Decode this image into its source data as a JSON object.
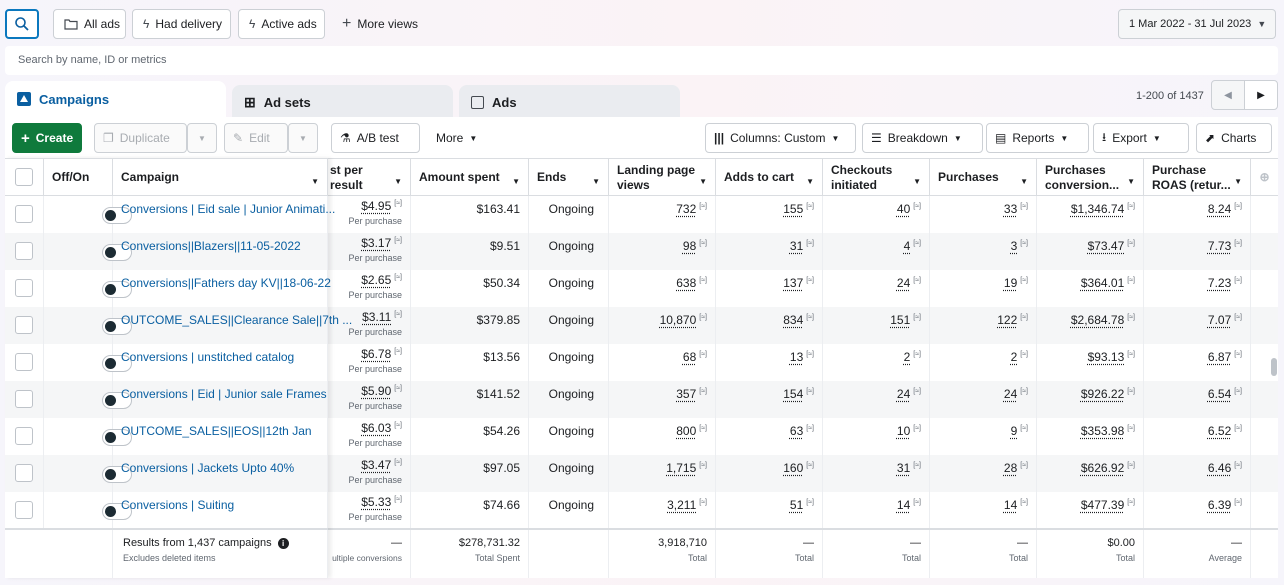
{
  "topbar": {
    "views": [
      "All ads",
      "Had delivery",
      "Active ads"
    ],
    "more_views": "More views",
    "date_range": "1 Mar 2022 - 31 Jul 2023"
  },
  "search": {
    "placeholder": "Search by name, ID or metrics"
  },
  "tabs": [
    "Campaigns",
    "Ad sets",
    "Ads"
  ],
  "pagination": {
    "text": "1-200 of 1437"
  },
  "toolbar": {
    "create": "Create",
    "duplicate": "Duplicate",
    "edit": "Edit",
    "ab_test": "A/B test",
    "more": "More",
    "columns": "Columns: Custom",
    "breakdown": "Breakdown",
    "reports": "Reports",
    "export": "Export",
    "charts": "Charts"
  },
  "headers": {
    "offon": "Off/On",
    "campaign": "Campaign",
    "cost": "st per result",
    "amount": "Amount spent",
    "ends": "Ends",
    "landing": "Landing page views",
    "adds": "Adds to cart",
    "checkouts": "Checkouts initiated",
    "purchases": "Purchases",
    "pconv": "Purchases conversion...",
    "roas": "Purchase ROAS (retur..."
  },
  "per_purchase": "Per purchase",
  "rows": [
    {
      "name": "Conversions | Eid sale | Junior Animati...",
      "cost": "$4.95",
      "amount": "$163.41",
      "ends": "Ongoing",
      "landing": "732",
      "adds": "155",
      "checkouts": "40",
      "purchases": "33",
      "pconv": "$1,346.74",
      "roas": "8.24"
    },
    {
      "name": "Conversions||Blazers||11-05-2022",
      "cost": "$3.17",
      "amount": "$9.51",
      "ends": "Ongoing",
      "landing": "98",
      "adds": "31",
      "checkouts": "4",
      "purchases": "3",
      "pconv": "$73.47",
      "roas": "7.73"
    },
    {
      "name": "Conversions||Fathers day KV||18-06-22",
      "cost": "$2.65",
      "amount": "$50.34",
      "ends": "Ongoing",
      "landing": "638",
      "adds": "137",
      "checkouts": "24",
      "purchases": "19",
      "pconv": "$364.01",
      "roas": "7.23"
    },
    {
      "name": "OUTCOME_SALES||Clearance Sale||7th ...",
      "cost": "$3.11",
      "amount": "$379.85",
      "ends": "Ongoing",
      "landing": "10,870",
      "adds": "834",
      "checkouts": "151",
      "purchases": "122",
      "pconv": "$2,684.78",
      "roas": "7.07"
    },
    {
      "name": "Conversions | unstitched catalog",
      "cost": "$6.78",
      "amount": "$13.56",
      "ends": "Ongoing",
      "landing": "68",
      "adds": "13",
      "checkouts": "2",
      "purchases": "2",
      "pconv": "$93.13",
      "roas": "6.87"
    },
    {
      "name": "Conversions | Eid | Junior sale Frames",
      "cost": "$5.90",
      "amount": "$141.52",
      "ends": "Ongoing",
      "landing": "357",
      "adds": "154",
      "checkouts": "24",
      "purchases": "24",
      "pconv": "$926.22",
      "roas": "6.54"
    },
    {
      "name": "OUTCOME_SALES||EOS||12th Jan",
      "cost": "$6.03",
      "amount": "$54.26",
      "ends": "Ongoing",
      "landing": "800",
      "adds": "63",
      "checkouts": "10",
      "purchases": "9",
      "pconv": "$353.98",
      "roas": "6.52"
    },
    {
      "name": "Conversions | Jackets Upto 40%",
      "cost": "$3.47",
      "amount": "$97.05",
      "ends": "Ongoing",
      "landing": "1,715",
      "adds": "160",
      "checkouts": "31",
      "purchases": "28",
      "pconv": "$626.92",
      "roas": "6.46"
    },
    {
      "name": "Conversions | Suiting",
      "cost": "$5.33",
      "amount": "$74.66",
      "ends": "Ongoing",
      "landing": "3,211",
      "adds": "51",
      "checkouts": "14",
      "purchases": "14",
      "pconv": "$477.39",
      "roas": "6.39"
    }
  ],
  "footer": {
    "results": "Results from 1,437 campaigns",
    "excludes": "Excludes deleted items",
    "cost_val": "—",
    "cost_sub": "ultiple conversions",
    "amount_val": "$278,731.32",
    "amount_sub": "Total Spent",
    "landing_val": "3,918,710",
    "landing_sub": "Total",
    "adds_val": "—",
    "adds_sub": "Total",
    "checkouts_val": "—",
    "checkouts_sub": "Total",
    "purchases_val": "—",
    "purchases_sub": "Total",
    "pconv_val": "$0.00",
    "pconv_sub": "Total",
    "roas_val": "—",
    "roas_sub": "Average"
  }
}
